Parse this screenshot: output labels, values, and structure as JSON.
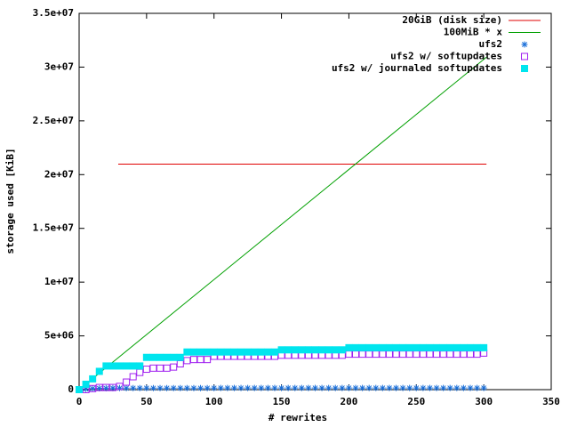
{
  "chart_data": {
    "type": "line_points",
    "xlabel": "# rewrites",
    "ylabel": "storage used [KiB]",
    "xlim": [
      0,
      350
    ],
    "ylim": [
      0,
      35000000
    ],
    "xticks": [
      0,
      50,
      100,
      150,
      200,
      250,
      300,
      350
    ],
    "yticks": [
      0,
      {
        "value": 5000000,
        "label": "5e+06"
      },
      {
        "value": 10000000,
        "label": "1e+07"
      },
      {
        "value": 15000000,
        "label": "1.5e+07"
      },
      {
        "value": 20000000,
        "label": "2e+07"
      },
      {
        "value": 25000000,
        "label": "2.5e+07"
      },
      {
        "value": 30000000,
        "label": "3e+07"
      },
      {
        "value": 35000000,
        "label": "3.5e+07"
      }
    ],
    "grid": false,
    "legend": "top-right",
    "x": [
      0,
      5,
      10,
      15,
      20,
      25,
      30,
      35,
      40,
      45,
      50,
      55,
      60,
      65,
      70,
      75,
      80,
      85,
      90,
      95,
      100,
      105,
      110,
      115,
      120,
      125,
      130,
      135,
      140,
      145,
      150,
      155,
      160,
      165,
      170,
      175,
      180,
      185,
      190,
      195,
      200,
      205,
      210,
      215,
      220,
      225,
      230,
      235,
      240,
      245,
      250,
      255,
      260,
      265,
      270,
      275,
      280,
      285,
      290,
      295,
      300
    ],
    "series": [
      {
        "name": "20GiB (disk size)",
        "color": "#e00000",
        "style": "line",
        "x": [
          29,
          302
        ],
        "values": [
          20971520,
          20971520
        ]
      },
      {
        "name": "100MiB * x",
        "color": "#00a000",
        "style": "line",
        "x": [
          0,
          302
        ],
        "values": [
          0,
          30924800
        ]
      },
      {
        "name": "ufs2",
        "color": "#1a6fd9",
        "style": "points",
        "marker": "star",
        "values": [
          0,
          60000,
          100000,
          120000,
          130000,
          140000,
          140000,
          140000,
          140000,
          140000,
          140000,
          140000,
          140000,
          140000,
          140000,
          140000,
          140000,
          140000,
          140000,
          140000,
          140000,
          150000,
          150000,
          150000,
          150000,
          150000,
          150000,
          150000,
          150000,
          150000,
          150000,
          150000,
          150000,
          150000,
          150000,
          150000,
          150000,
          150000,
          150000,
          150000,
          150000,
          150000,
          150000,
          150000,
          150000,
          150000,
          150000,
          150000,
          150000,
          150000,
          150000,
          150000,
          150000,
          150000,
          150000,
          150000,
          150000,
          150000,
          150000,
          150000,
          150000
        ]
      },
      {
        "name": "ufs2 w/ softupdates",
        "color": "#a020f0",
        "style": "points",
        "marker": "open-square",
        "values": [
          0,
          0,
          100000,
          200000,
          200000,
          200000,
          300000,
          700000,
          1200000,
          1600000,
          1900000,
          2000000,
          2000000,
          2000000,
          2100000,
          2400000,
          2700000,
          2800000,
          2800000,
          2800000,
          3100000,
          3100000,
          3100000,
          3100000,
          3100000,
          3100000,
          3100000,
          3100000,
          3100000,
          3100000,
          3200000,
          3200000,
          3200000,
          3200000,
          3200000,
          3200000,
          3200000,
          3200000,
          3200000,
          3200000,
          3300000,
          3300000,
          3300000,
          3300000,
          3300000,
          3300000,
          3300000,
          3300000,
          3300000,
          3300000,
          3300000,
          3300000,
          3300000,
          3300000,
          3300000,
          3300000,
          3300000,
          3300000,
          3300000,
          3300000,
          3400000
        ]
      },
      {
        "name": "ufs2 w/ journaled softupdates",
        "color": "#00e5ee",
        "style": "points",
        "marker": "filled-square",
        "values": [
          0,
          500000,
          1000000,
          1700000,
          2200000,
          2200000,
          2200000,
          2200000,
          2200000,
          2200000,
          3000000,
          3000000,
          3000000,
          3000000,
          3000000,
          3000000,
          3500000,
          3500000,
          3500000,
          3500000,
          3500000,
          3500000,
          3500000,
          3500000,
          3500000,
          3500000,
          3500000,
          3500000,
          3500000,
          3500000,
          3700000,
          3700000,
          3700000,
          3700000,
          3700000,
          3700000,
          3700000,
          3700000,
          3700000,
          3700000,
          3900000,
          3900000,
          3900000,
          3900000,
          3900000,
          3900000,
          3900000,
          3900000,
          3900000,
          3900000,
          3900000,
          3900000,
          3900000,
          3900000,
          3900000,
          3900000,
          3900000,
          3900000,
          3900000,
          3900000,
          3900000
        ]
      }
    ]
  }
}
